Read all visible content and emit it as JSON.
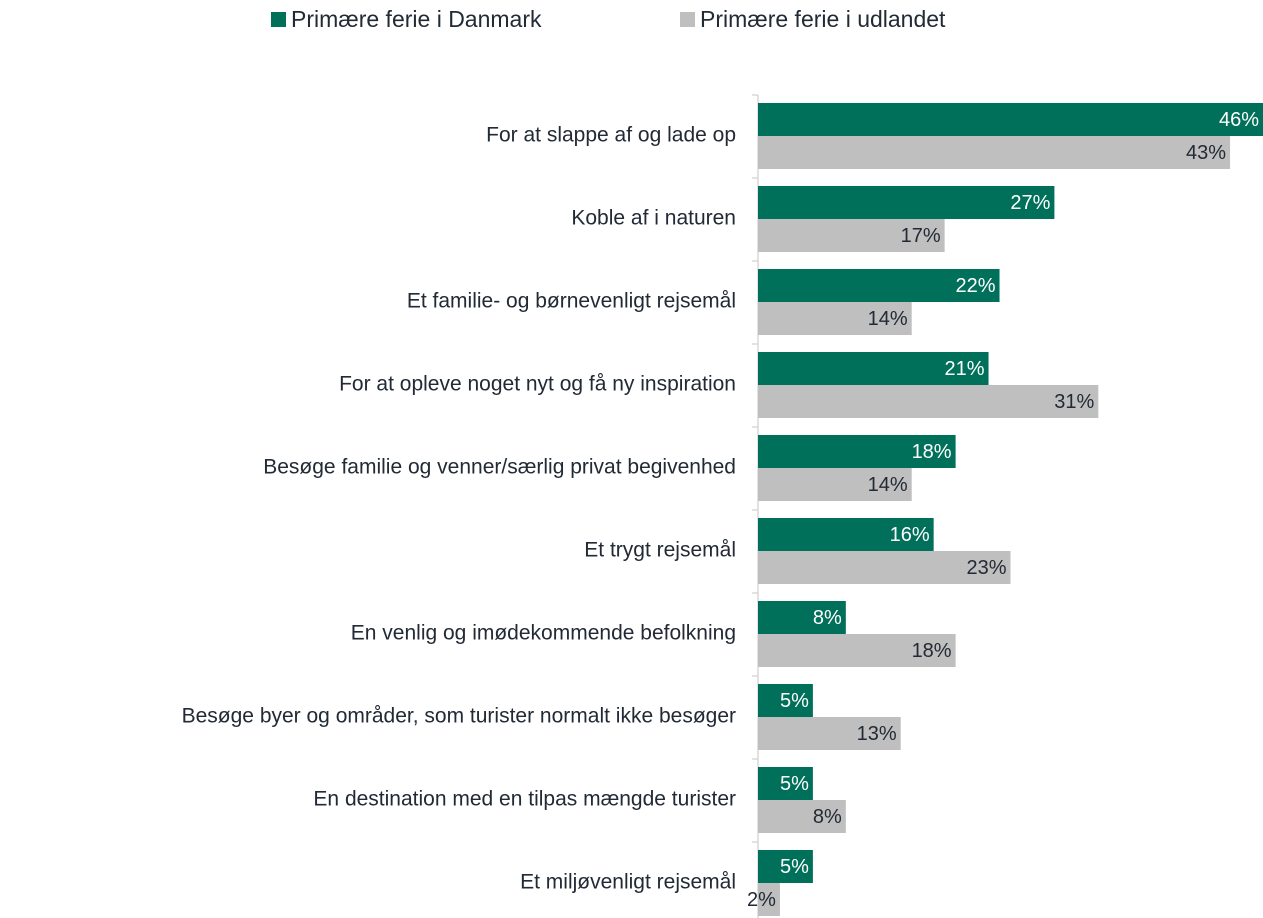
{
  "chart_data": {
    "type": "barh",
    "categories": [
      "For at slappe af og lade op",
      "Koble af i naturen",
      "Et familie- og børnevenligt rejsemål",
      "For at opleve noget nyt og få ny inspiration",
      "Besøge familie og venner/særlig privat begivenhed",
      "Et trygt rejsemål",
      "En venlig og imødekommende befolkning",
      "Besøge byer og områder, som turister normalt ikke besøger",
      "En destination med en tilpas mængde turister",
      "Et miljøvenligt rejsemål"
    ],
    "series": [
      {
        "name": "Primære ferie i Danmark",
        "color": "#00705a",
        "values": [
          46,
          27,
          22,
          21,
          18,
          16,
          8,
          5,
          5,
          5
        ],
        "value_labels": [
          "46%",
          "27%",
          "22%",
          "21%",
          "18%",
          "16%",
          "8%",
          "5%",
          "5%",
          "5%"
        ]
      },
      {
        "name": "Primære ferie i udlandet",
        "color": "#bfbfbf",
        "values": [
          43,
          17,
          14,
          31,
          14,
          23,
          18,
          13,
          8,
          2
        ],
        "value_labels": [
          "43%",
          "17%",
          "14%",
          "31%",
          "14%",
          "23%",
          "18%",
          "13%",
          "8%",
          "2%"
        ]
      }
    ],
    "xlim": [
      0,
      46
    ]
  }
}
